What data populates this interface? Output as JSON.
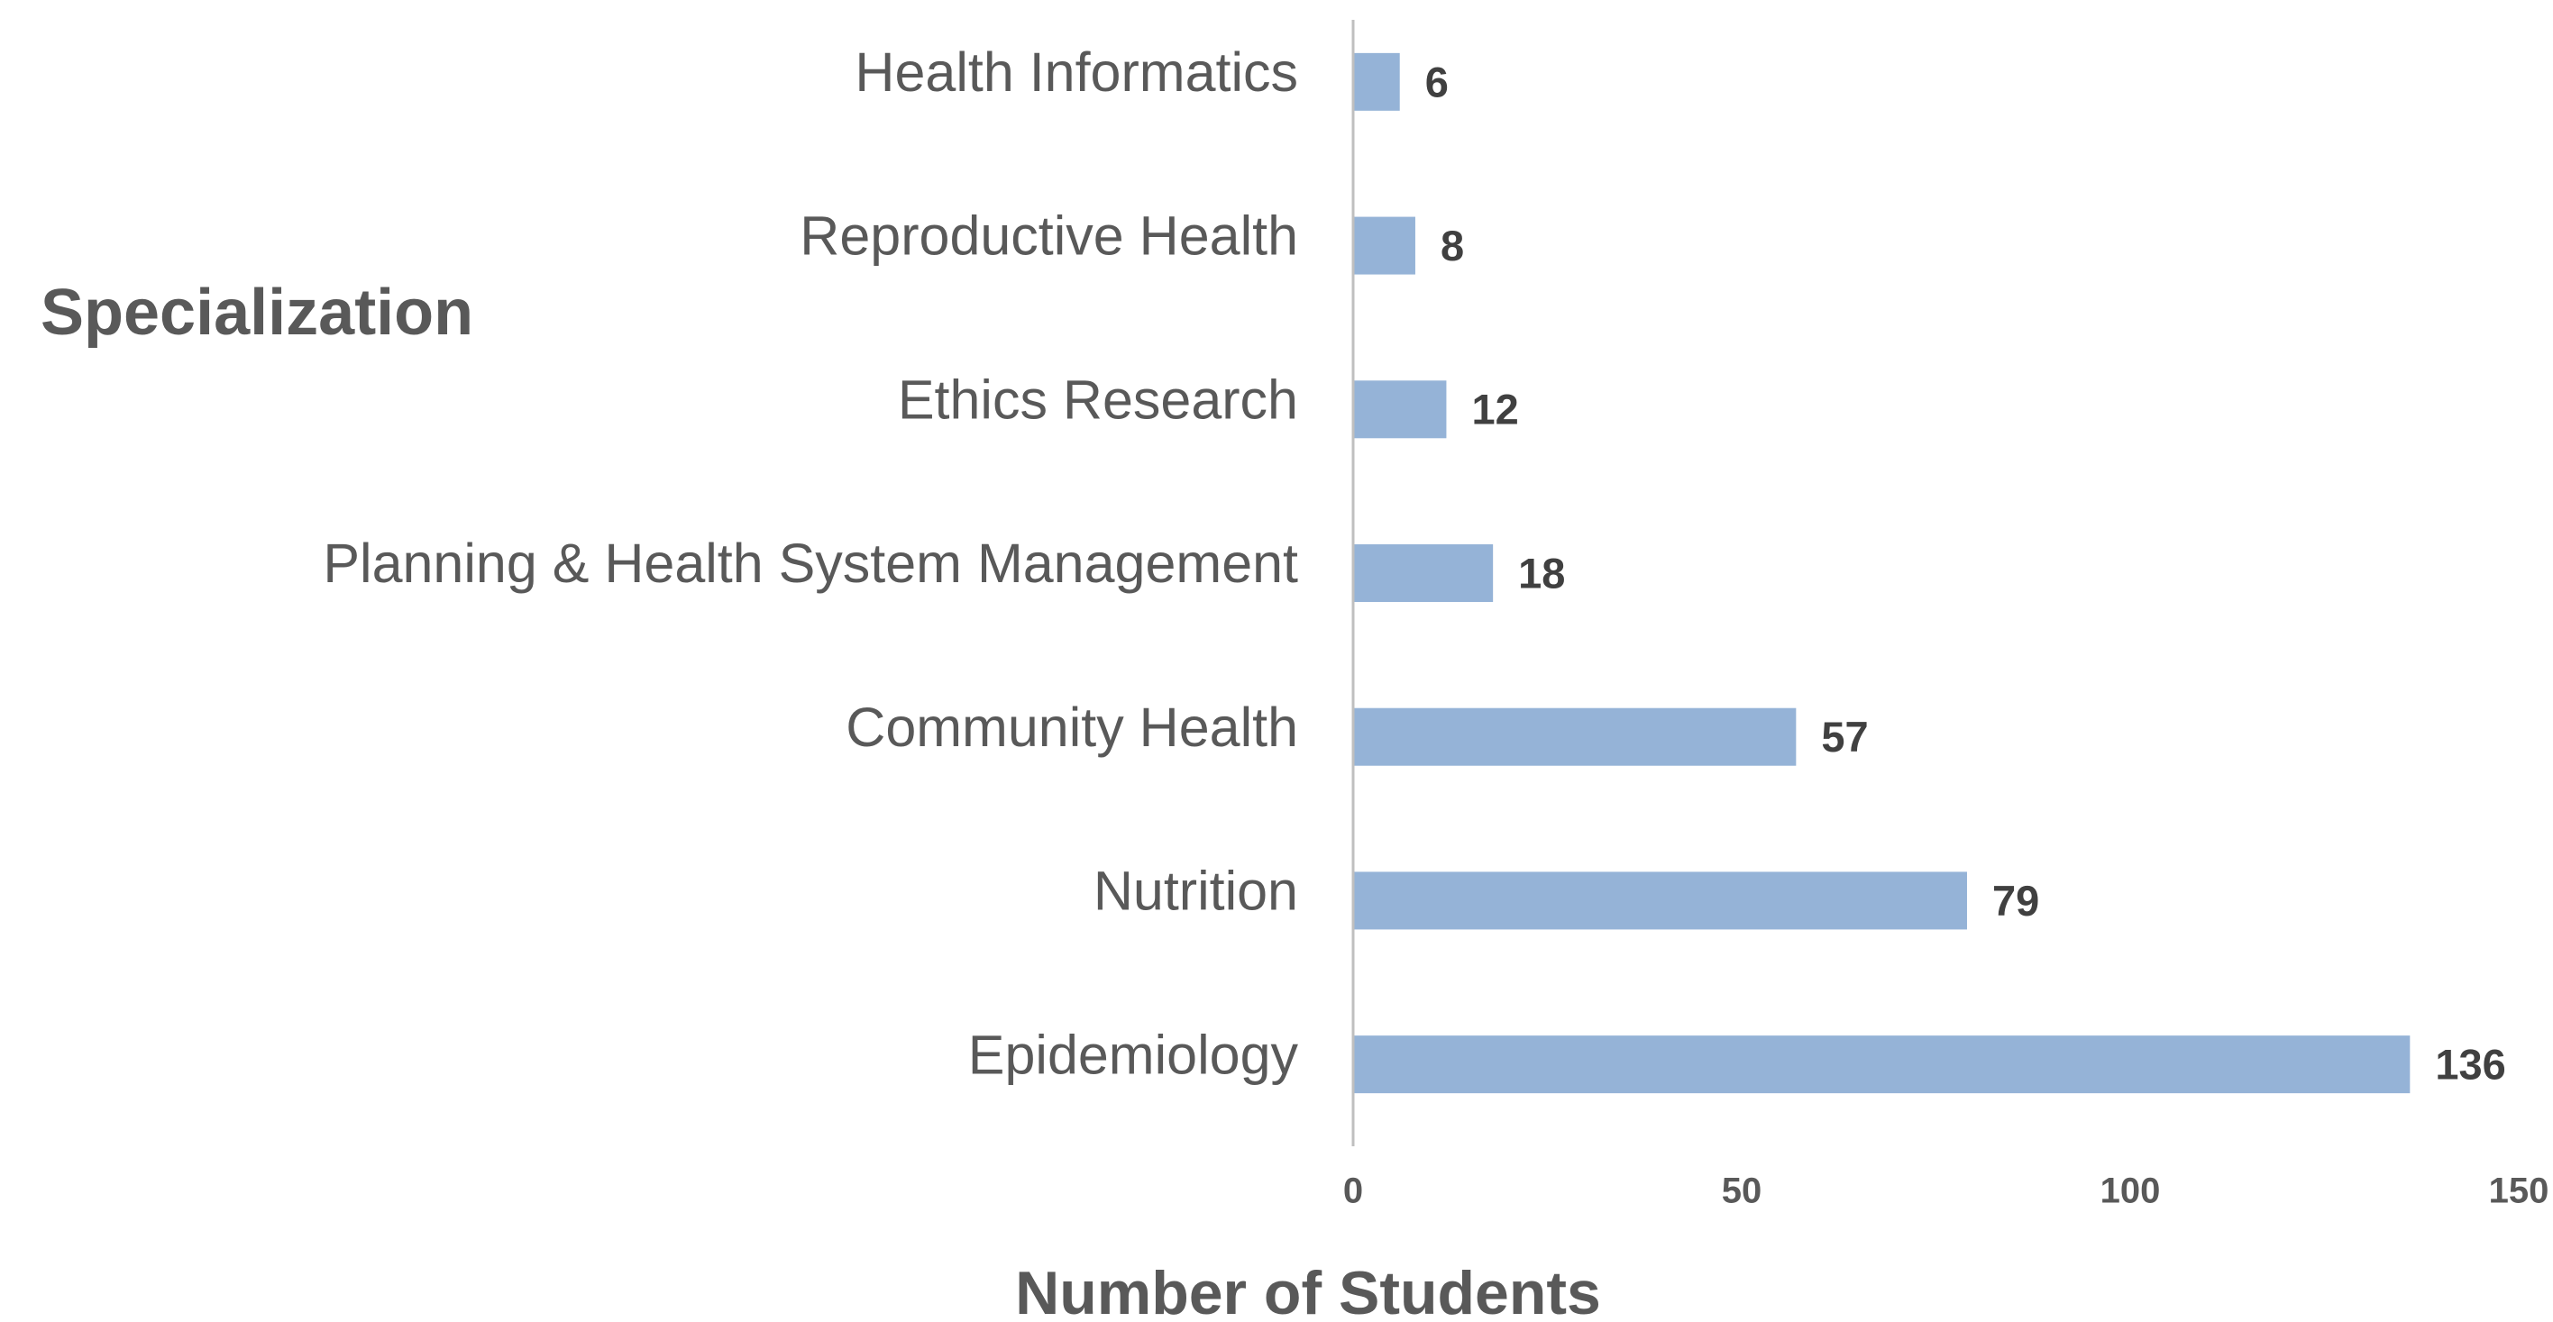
{
  "chart_data": {
    "type": "barh",
    "ylabel": "Specialization",
    "xlabel": "Number of Students",
    "categories": [
      "Health Informatics",
      "Reproductive Health",
      "Ethics Research",
      "Planning & Health System Management",
      "Community Health",
      "Nutrition",
      "Epidemiology"
    ],
    "values": [
      6,
      8,
      12,
      18,
      57,
      79,
      136
    ],
    "color": "#95b3d7",
    "xlim": [
      0,
      150
    ],
    "xticks": [
      0,
      50,
      100,
      150
    ],
    "grid": false
  }
}
